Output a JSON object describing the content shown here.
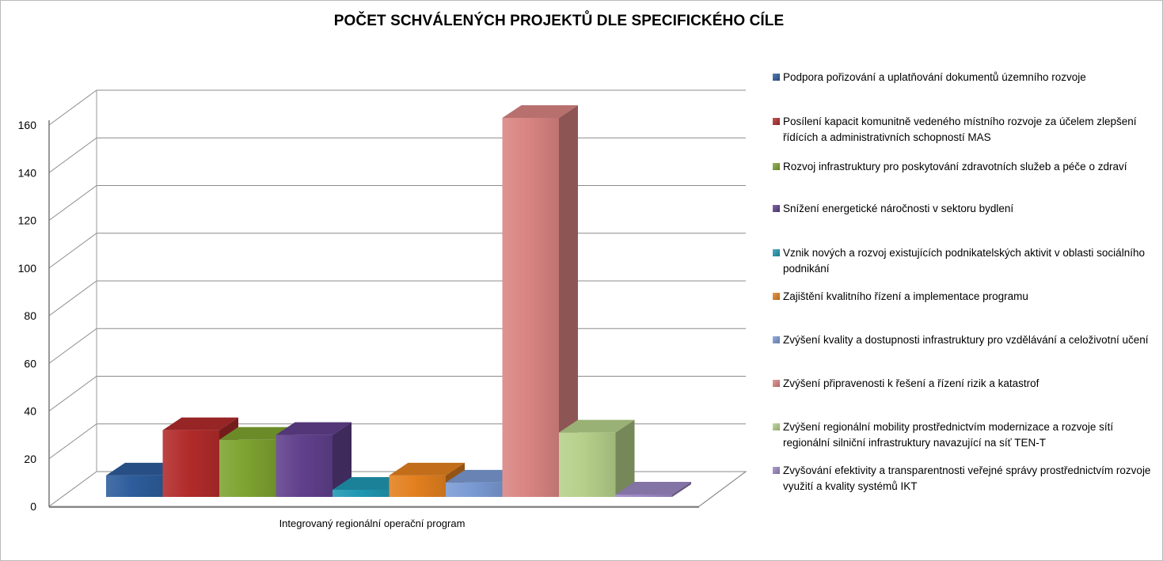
{
  "chart_data": {
    "type": "bar",
    "title": "POČET SCHVÁLENÝCH PROJEKTŮ DLE SPECIFICKÉHO CÍLE",
    "categories": [
      "Integrovaný regionální operační program"
    ],
    "ylim": [
      0,
      160
    ],
    "yticks": [
      0,
      20,
      40,
      60,
      80,
      100,
      120,
      140,
      160
    ],
    "grid": true,
    "legend_position": "right",
    "style": "3d-clustered-column",
    "series": [
      {
        "name": "Podpora pořizování a uplatňování dokumentů územního rozvoje",
        "values": [
          9
        ],
        "color": "#2e5d9c"
      },
      {
        "name": "Posílení kapacit komunitně vedeného místního rozvoje za účelem zlepšení řídících a administrativních schopností MAS",
        "values": [
          28
        ],
        "color": "#b22b2b"
      },
      {
        "name": "Rozvoj infrastruktury pro poskytování zdravotních služeb a péče o zdraví",
        "values": [
          24
        ],
        "color": "#7ea330"
      },
      {
        "name": "Snížení energetické náročnosti v sektoru bydlení",
        "values": [
          26
        ],
        "color": "#60408c"
      },
      {
        "name": "Vznik nových a rozvoj existujících podnikatelských aktivit v oblasti sociálního podnikání",
        "values": [
          3
        ],
        "color": "#2098b3"
      },
      {
        "name": "Zajištění kvalitního řízení a implementace programu",
        "values": [
          9
        ],
        "color": "#e3801f"
      },
      {
        "name": "Zvýšení kvality a dostupnosti infrastruktury pro vzdělávání a celoživotní učení",
        "values": [
          6
        ],
        "color": "#7a9ad4"
      },
      {
        "name": "Zvýšení připravenosti k řešení a řízení rizik a katastrof",
        "values": [
          159
        ],
        "color": "#d98482"
      },
      {
        "name": "Zvýšení regionální mobility prostřednictvím modernizace a rozvoje sítí regionální silniční infrastruktury navazující na síť TEN-T",
        "values": [
          27
        ],
        "color": "#b5d08a"
      },
      {
        "name": "Zvyšování efektivity a transparentnosti veřejné správy prostřednictvím rozvoje využití a kvality systémů IKT",
        "values": [
          1
        ],
        "color": "#9b87c2"
      }
    ]
  }
}
